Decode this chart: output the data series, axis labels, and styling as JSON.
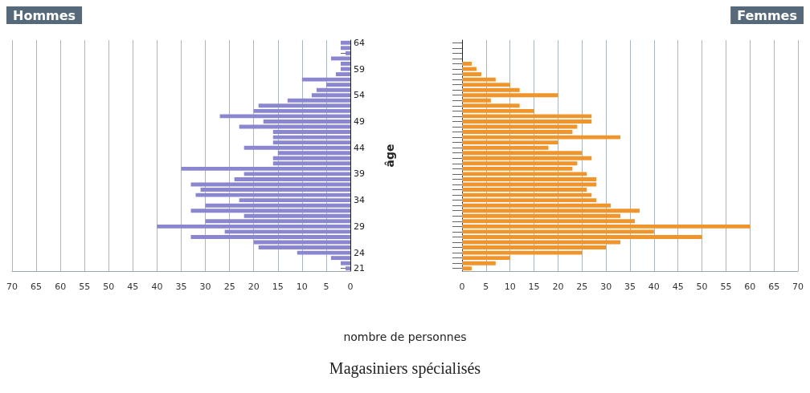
{
  "chart_data": [
    {
      "type": "bar",
      "orientation": "horizontal",
      "title": "Hommes",
      "xlabel": "nombre de personnes",
      "ylabel": "âge",
      "annotations": [
        "Magasiniers spécialisés"
      ],
      "categories": [
        "64",
        null,
        null,
        null,
        null,
        "59",
        null,
        null,
        null,
        null,
        "54",
        null,
        null,
        null,
        null,
        "49",
        null,
        null,
        null,
        null,
        "44",
        null,
        null,
        null,
        null,
        "39",
        null,
        null,
        null,
        null,
        "34",
        null,
        null,
        null,
        null,
        "29",
        null,
        null,
        null,
        null,
        "24",
        null,
        null,
        "21"
      ],
      "series": [
        {
          "color": "#8a86d0",
          "values": [
            2,
            2,
            1,
            4,
            2,
            2,
            3,
            10,
            5,
            7,
            8,
            13,
            19,
            20,
            27,
            18,
            23,
            16,
            16,
            16,
            22,
            15,
            16,
            16,
            35,
            22,
            24,
            33,
            31,
            32,
            23,
            30,
            33,
            22,
            30,
            40,
            26,
            33,
            20,
            19,
            11,
            4,
            2,
            1
          ]
        }
      ],
      "xlim": [
        70,
        0
      ],
      "xticks": [
        0,
        5,
        10,
        15,
        20,
        25,
        30,
        35,
        40,
        45,
        50,
        55,
        60,
        65,
        70
      ],
      "grid": "x"
    },
    {
      "type": "bar",
      "orientation": "horizontal",
      "title": "Femmes",
      "categories": [
        "64",
        null,
        null,
        null,
        null,
        "59",
        null,
        null,
        null,
        null,
        "54",
        null,
        null,
        null,
        null,
        "49",
        null,
        null,
        null,
        null,
        "44",
        null,
        null,
        null,
        null,
        "39",
        null,
        null,
        null,
        null,
        "34",
        null,
        null,
        null,
        null,
        "29",
        null,
        null,
        null,
        null,
        "24",
        null,
        null,
        "21"
      ],
      "series": [
        {
          "color": "#f0942c",
          "values": [
            0,
            0,
            0,
            0,
            2,
            3,
            4,
            7,
            10,
            12,
            20,
            6,
            12,
            15,
            27,
            27,
            24,
            23,
            33,
            20,
            18,
            25,
            27,
            24,
            23,
            26,
            28,
            28,
            26,
            27,
            28,
            31,
            37,
            33,
            36,
            60,
            40,
            50,
            33,
            30,
            25,
            10,
            7,
            2
          ]
        }
      ],
      "xlim": [
        0,
        70
      ],
      "xticks": [
        0,
        5,
        10,
        15,
        20,
        25,
        30,
        35,
        40,
        45,
        50,
        55,
        60,
        65,
        70
      ],
      "grid": "x",
      "tick_labels": "x"
    }
  ]
}
